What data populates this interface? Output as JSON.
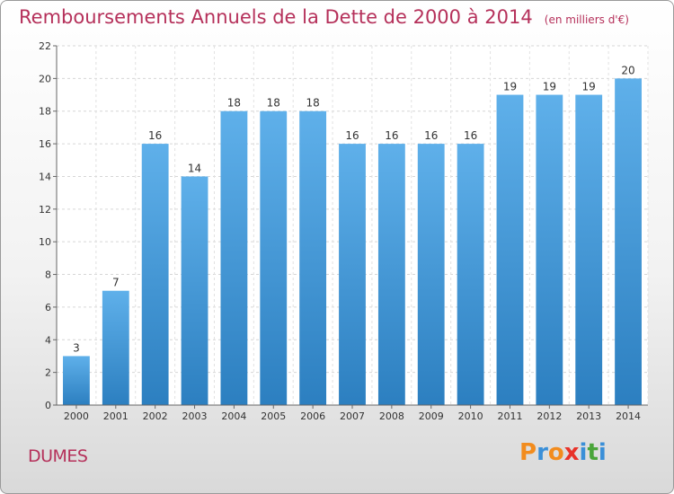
{
  "header": {
    "title": "Remboursements Annuels de la Dette de 2000 à 2014",
    "unit": "(en milliers d'€)"
  },
  "footer": {
    "commune": "DUMES",
    "logo": "Proxiti"
  },
  "colors": {
    "bar_top": "#5fb0ea",
    "bar_bottom": "#2c7fc0",
    "title": "#b5305a",
    "logo_letters": [
      "#f28c1e",
      "#3a8fd8",
      "#f28c1e",
      "#e8332a",
      "#3a8fd8",
      "#4aa53a",
      "#3a8fd8"
    ]
  },
  "chart_data": {
    "type": "bar",
    "title": "Remboursements Annuels de la Dette de 2000 à 2014",
    "unit": "(en milliers d'€)",
    "categories": [
      "2000",
      "2001",
      "2002",
      "2003",
      "2004",
      "2005",
      "2006",
      "2007",
      "2008",
      "2009",
      "2010",
      "2011",
      "2012",
      "2013",
      "2014"
    ],
    "values": [
      3,
      7,
      16,
      14,
      18,
      18,
      18,
      16,
      16,
      16,
      16,
      19,
      19,
      19,
      20
    ],
    "data_labels": [
      "3",
      "7",
      "16",
      "14",
      "18",
      "18",
      "18",
      "16",
      "16",
      "16",
      "16",
      "19",
      "19",
      "19",
      "20"
    ],
    "ylim": [
      0,
      22
    ],
    "yticks": [
      0,
      2,
      4,
      6,
      8,
      10,
      12,
      14,
      16,
      18,
      20,
      22
    ],
    "grid": true,
    "legend": "none"
  }
}
